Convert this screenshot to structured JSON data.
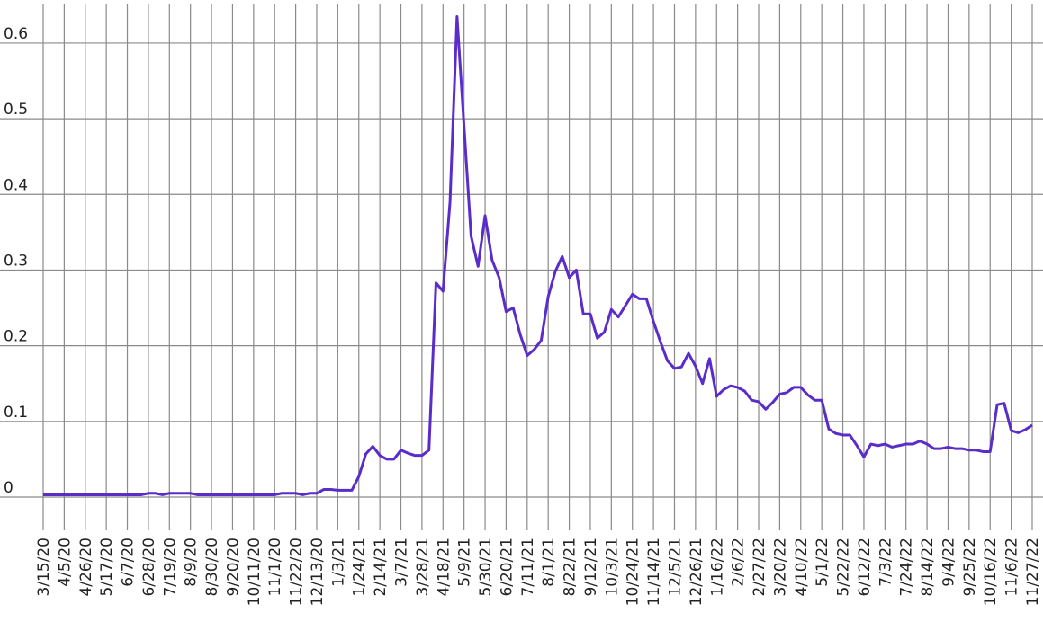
{
  "chart_data": {
    "type": "line",
    "categories": [
      "3/15/20",
      null,
      null,
      "4/5/20",
      null,
      null,
      "4/26/20",
      null,
      null,
      "5/17/20",
      null,
      null,
      "6/7/20",
      null,
      null,
      "6/28/20",
      null,
      null,
      "7/19/20",
      null,
      null,
      "8/9/20",
      null,
      null,
      "8/30/20",
      null,
      null,
      "9/20/20",
      null,
      null,
      "10/11/20",
      null,
      null,
      "11/1/20",
      null,
      null,
      "11/22/20",
      null,
      null,
      "12/13/20",
      null,
      null,
      "1/3/21",
      null,
      null,
      "1/24/21",
      null,
      null,
      "2/14/21",
      null,
      null,
      "3/7/21",
      null,
      null,
      "3/28/21",
      null,
      null,
      "4/18/21",
      null,
      null,
      "5/9/21",
      null,
      null,
      "5/30/21",
      null,
      null,
      "6/20/21",
      null,
      null,
      "7/11/21",
      null,
      null,
      "8/1/21",
      null,
      null,
      "8/22/21",
      null,
      null,
      "9/12/21",
      null,
      null,
      "10/3/21",
      null,
      null,
      "10/24/21",
      null,
      null,
      "11/14/21",
      null,
      null,
      "12/5/21",
      null,
      null,
      "12/26/21",
      null,
      null,
      "1/16/22",
      null,
      null,
      "2/6/22",
      null,
      null,
      "2/27/22",
      null,
      null,
      "3/20/22",
      null,
      null,
      "4/10/22",
      null,
      null,
      "5/1/22",
      null,
      null,
      "5/22/22",
      null,
      null,
      "6/12/22",
      null,
      null,
      "7/3/22",
      null,
      null,
      "7/24/22",
      null,
      null,
      "8/14/22",
      null,
      null,
      "9/4/22",
      null,
      null,
      "9/25/22",
      null,
      null,
      "10/16/22",
      null,
      null,
      "11/6/22",
      null,
      null,
      "11/27/22"
    ],
    "series": [
      {
        "color": "#5a2cc9",
        "values": [
          0.003,
          0.003,
          0.003,
          0.003,
          0.003,
          0.003,
          0.003,
          0.003,
          0.003,
          0.003,
          0.003,
          0.003,
          0.003,
          0.003,
          0.003,
          0.005,
          0.005,
          0.003,
          0.005,
          0.005,
          0.005,
          0.005,
          0.003,
          0.003,
          0.003,
          0.003,
          0.003,
          0.003,
          0.003,
          0.003,
          0.003,
          0.003,
          0.003,
          0.003,
          0.005,
          0.005,
          0.005,
          0.003,
          0.005,
          0.005,
          0.01,
          0.01,
          0.009,
          0.009,
          0.009,
          0.027,
          0.057,
          0.067,
          0.055,
          0.05,
          0.05,
          0.062,
          0.058,
          0.055,
          0.055,
          0.062,
          0.283,
          0.272,
          0.39,
          0.635,
          0.49,
          0.345,
          0.305,
          0.372,
          0.313,
          0.29,
          0.245,
          0.25,
          0.215,
          0.187,
          0.195,
          0.207,
          0.265,
          0.298,
          0.318,
          0.29,
          0.3,
          0.242,
          0.242,
          0.21,
          0.218,
          0.248,
          0.238,
          0.253,
          0.268,
          0.262,
          0.262,
          0.232,
          0.205,
          0.18,
          0.17,
          0.172,
          0.19,
          0.173,
          0.15,
          0.183,
          0.133,
          0.142,
          0.147,
          0.145,
          0.14,
          0.128,
          0.126,
          0.116,
          0.125,
          0.136,
          0.138,
          0.145,
          0.145,
          0.135,
          0.128,
          0.128,
          0.09,
          0.084,
          0.082,
          0.082,
          0.068,
          0.053,
          0.07,
          0.068,
          0.07,
          0.066,
          0.068,
          0.07,
          0.07,
          0.074,
          0.07,
          0.064,
          0.064,
          0.066,
          0.064,
          0.064,
          0.062,
          0.062,
          0.06,
          0.06,
          0.122,
          0.124,
          0.088,
          0.085,
          0.089,
          0.095
        ]
      }
    ],
    "ylim": [
      -0.044,
      0.651
    ],
    "yticks": [
      0,
      0.1,
      0.2,
      0.3,
      0.4,
      0.5,
      0.6
    ],
    "grid": true
  }
}
